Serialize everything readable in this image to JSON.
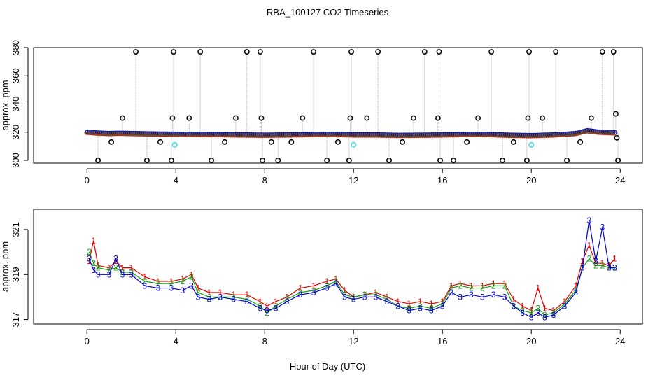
{
  "figure": {
    "title": "RBA_100127  CO2 Timeseries",
    "xlabel": "Hour of Day (UTC)"
  },
  "colors": {
    "black": "#000000",
    "cyan": "#33e0e8",
    "red": "#e00000",
    "green": "#18a018",
    "blue": "#0000d0",
    "gray": "#aaaaaa"
  },
  "chart_data": [
    {
      "type": "scatter",
      "name": "top-panel",
      "ylabel": "approx. ppm",
      "xlim": [
        -2.4,
        25
      ],
      "ylim": [
        298,
        380
      ],
      "xticks": [
        0,
        4,
        8,
        12,
        16,
        20,
        24
      ],
      "yticks": [
        300,
        320,
        340,
        360,
        380
      ],
      "baseline": {
        "x": [
          0,
          0.5,
          1,
          1.5,
          2,
          3,
          4,
          5,
          6,
          7,
          8,
          9,
          10,
          11,
          12,
          13,
          14,
          15,
          16,
          17,
          18,
          19,
          20,
          21,
          22,
          22.5,
          23,
          23.8
        ],
        "y": [
          320,
          319.3,
          319,
          319.2,
          319,
          318.7,
          318.5,
          318.3,
          318.2,
          318,
          317.8,
          318,
          318.2,
          318.5,
          318,
          318,
          317.7,
          317.8,
          318,
          318.3,
          318.3,
          317.8,
          317.5,
          318,
          319,
          321,
          320,
          319.5
        ]
      },
      "outliers": {
        "x": [
          0.5,
          1.1,
          1.6,
          2.2,
          2.7,
          3.3,
          3.8,
          3.85,
          3.9,
          4.6,
          5.1,
          5.6,
          6.2,
          6.7,
          7.2,
          7.8,
          7.85,
          7.9,
          8.3,
          8.6,
          9.2,
          9.7,
          10.2,
          10.8,
          11.3,
          11.8,
          11.85,
          11.9,
          12.6,
          13.1,
          13.6,
          14.2,
          14.7,
          15.2,
          15.8,
          15.85,
          15.9,
          16.5,
          17.1,
          17.6,
          18.2,
          18.7,
          19.2,
          19.8,
          19.85,
          19.9,
          20.5,
          21.1,
          21.6,
          22.2,
          22.7,
          23.2,
          23.7,
          23.8,
          23.85,
          23.9
        ],
        "y": [
          300,
          313,
          330,
          377,
          300,
          313,
          300,
          330,
          377,
          330,
          377,
          300,
          313,
          330,
          377,
          377,
          330,
          300,
          313,
          300,
          313,
          330,
          377,
          300,
          313,
          300,
          330,
          377,
          330,
          377,
          300,
          313,
          330,
          377,
          330,
          377,
          300,
          300,
          313,
          330,
          377,
          300,
          313,
          300,
          330,
          377,
          330,
          377,
          300,
          313,
          330,
          377,
          377,
          333,
          316,
          300
        ]
      },
      "cyan_points": {
        "x": [
          3.95,
          12.0,
          20.0
        ],
        "y": [
          311,
          311,
          311
        ]
      }
    },
    {
      "type": "line",
      "name": "bottom-panel",
      "ylabel": "approx. ppm",
      "xlim": [
        -2.4,
        25
      ],
      "ylim": [
        316.8,
        321.9
      ],
      "xticks": [
        0,
        4,
        8,
        12,
        16,
        20,
        24
      ],
      "yticks": [
        317,
        319,
        321
      ],
      "series": [
        {
          "name": "1",
          "x": [
            0.1,
            0.3,
            0.5,
            1.0,
            1.3,
            1.6,
            2.0,
            2.6,
            3.2,
            3.8,
            4.3,
            4.7,
            5.0,
            5.5,
            6.0,
            6.6,
            7.2,
            7.8,
            8.1,
            8.5,
            9.0,
            9.6,
            10.2,
            10.8,
            11.2,
            11.6,
            12.0,
            12.5,
            13.0,
            13.5,
            14.0,
            14.5,
            15.0,
            15.5,
            16.0,
            16.4,
            16.8,
            17.3,
            17.8,
            18.3,
            18.8,
            19.2,
            19.6,
            20.0,
            20.3,
            20.6,
            21.0,
            21.5,
            22.0,
            22.3,
            22.6,
            22.9,
            23.2,
            23.5,
            23.75
          ],
          "y": [
            319.6,
            320.5,
            319.4,
            319.3,
            319.6,
            319.3,
            319.3,
            318.9,
            318.7,
            318.7,
            318.8,
            319.0,
            318.4,
            318.2,
            318.2,
            318.1,
            318.1,
            317.8,
            317.6,
            317.8,
            318.0,
            318.4,
            318.5,
            318.7,
            318.8,
            318.3,
            318.0,
            318.1,
            318.2,
            318.0,
            317.8,
            317.7,
            317.8,
            317.7,
            317.8,
            318.5,
            318.6,
            318.5,
            318.5,
            318.6,
            318.6,
            317.9,
            317.6,
            317.4,
            318.4,
            317.5,
            317.4,
            317.8,
            318.5,
            319.6,
            320.3,
            319.5,
            319.5,
            319.4,
            319.7
          ]
        },
        {
          "name": "2",
          "x": [
            0.1,
            0.3,
            0.5,
            1.0,
            1.3,
            1.6,
            2.0,
            2.6,
            3.2,
            3.8,
            4.3,
            4.7,
            5.0,
            5.5,
            6.0,
            6.6,
            7.2,
            7.8,
            8.1,
            8.5,
            9.0,
            9.6,
            10.2,
            10.8,
            11.2,
            11.6,
            12.0,
            12.5,
            13.0,
            13.5,
            14.0,
            14.5,
            15.0,
            15.5,
            16.0,
            16.4,
            16.8,
            17.3,
            17.8,
            18.3,
            18.8,
            19.2,
            19.6,
            20.0,
            20.3,
            20.6,
            21.0,
            21.5,
            22.0,
            22.3,
            22.6,
            22.9,
            23.2,
            23.5,
            23.75
          ],
          "y": [
            320.0,
            319.5,
            319.3,
            319.2,
            319.3,
            319.1,
            319.1,
            318.7,
            318.6,
            318.6,
            318.7,
            318.9,
            318.2,
            318.0,
            318.0,
            318.0,
            317.9,
            317.6,
            317.3,
            317.6,
            317.9,
            318.2,
            318.3,
            318.5,
            318.7,
            318.1,
            318.0,
            318.1,
            318.1,
            317.9,
            317.6,
            317.5,
            317.6,
            317.5,
            317.7,
            318.4,
            318.5,
            318.4,
            318.4,
            318.5,
            318.5,
            317.6,
            317.4,
            317.3,
            317.5,
            317.2,
            317.3,
            317.7,
            318.3,
            319.3,
            319.7,
            319.4,
            319.4,
            319.3,
            319.3
          ]
        },
        {
          "name": "3",
          "x": [
            0.1,
            0.3,
            0.5,
            1.0,
            1.3,
            1.6,
            2.0,
            2.6,
            3.2,
            3.8,
            4.3,
            4.7,
            5.0,
            5.5,
            6.0,
            6.6,
            7.2,
            7.8,
            8.1,
            8.5,
            9.0,
            9.6,
            10.2,
            10.8,
            11.2,
            11.6,
            12.0,
            12.5,
            13.0,
            13.5,
            14.0,
            14.5,
            15.0,
            15.5,
            16.0,
            16.4,
            16.8,
            17.3,
            17.8,
            18.3,
            18.8,
            19.2,
            19.6,
            20.0,
            20.3,
            20.6,
            21.0,
            21.5,
            22.0,
            22.3,
            22.6,
            22.9,
            23.2,
            23.5,
            23.75
          ],
          "y": [
            319.7,
            319.2,
            319.0,
            319.0,
            319.7,
            319.0,
            319.0,
            318.5,
            318.4,
            318.4,
            318.3,
            318.5,
            318.0,
            317.9,
            318.0,
            317.9,
            317.8,
            317.5,
            317.4,
            317.5,
            317.8,
            318.1,
            318.2,
            318.4,
            318.6,
            318.0,
            317.9,
            318.0,
            318.0,
            317.8,
            317.6,
            317.4,
            317.5,
            317.4,
            317.6,
            318.2,
            318.0,
            318.1,
            318.0,
            318.1,
            318.0,
            317.6,
            317.3,
            317.1,
            317.3,
            317.1,
            317.2,
            317.6,
            318.2,
            319.3,
            321.4,
            319.6,
            321.1,
            319.3,
            319.3
          ]
        }
      ]
    }
  ]
}
